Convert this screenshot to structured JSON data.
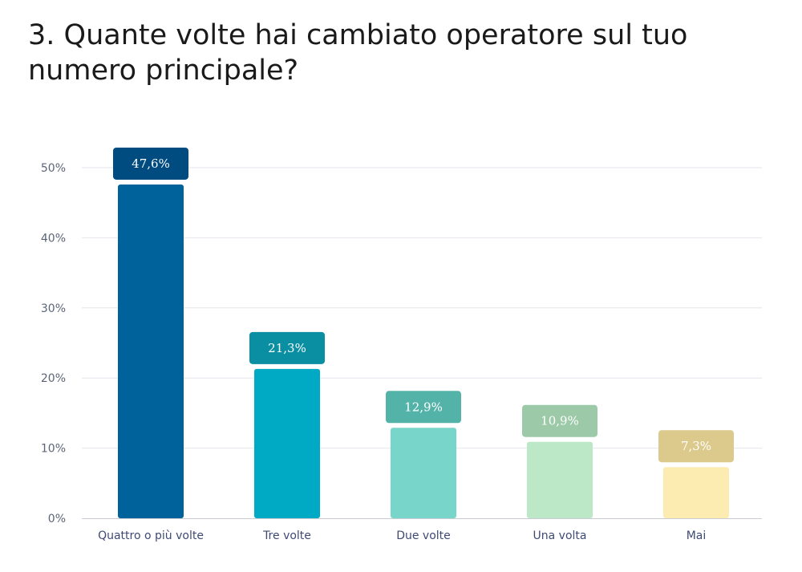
{
  "title": "3. Quante volte hai cambiato operatore sul tuo numero principale?",
  "chart_data": {
    "type": "bar",
    "title": "3. Quante volte hai cambiato operatore sul tuo numero principale?",
    "xlabel": "",
    "ylabel": "",
    "categories": [
      "Quattro o più volte",
      "Tre volte",
      "Due volte",
      "Una volta",
      "Mai"
    ],
    "values": [
      47.6,
      21.3,
      12.9,
      10.9,
      7.3
    ],
    "value_labels": [
      "47,6%",
      "21,3%",
      "12,9%",
      "10,9%",
      "7,3%"
    ],
    "ylim": [
      0,
      50
    ],
    "yticks": [
      0,
      10,
      20,
      30,
      40,
      50
    ],
    "ytick_labels": [
      "0%",
      "10%",
      "20%",
      "30%",
      "40%",
      "50%"
    ],
    "grid": true,
    "legend": "none",
    "bar_colors": [
      "#00629b",
      "#00a9c4",
      "#78d5c9",
      "#bce8c8",
      "#fdecb2"
    ],
    "label_colors": [
      "#004b80",
      "#0a8ea1",
      "#54b3a8",
      "#9ccaa9",
      "#dcc98c"
    ]
  }
}
